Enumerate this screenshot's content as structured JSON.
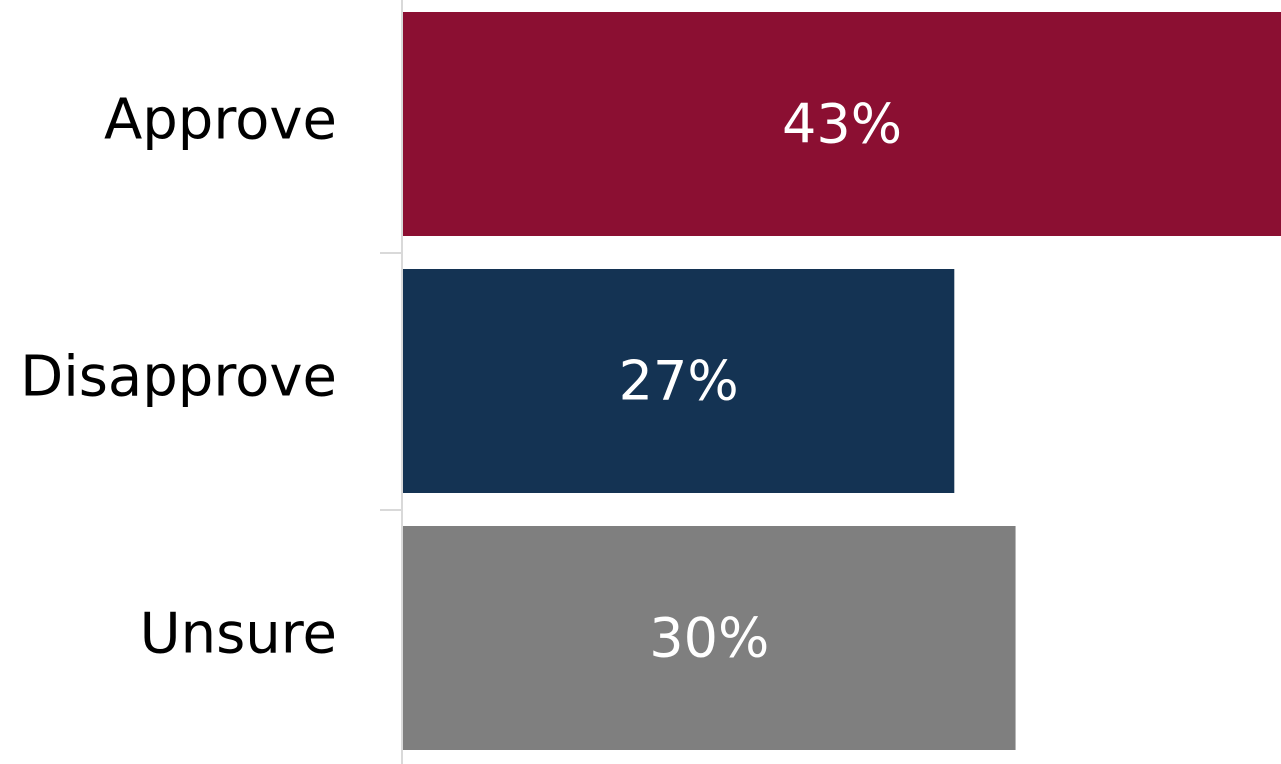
{
  "chart_data": {
    "type": "bar",
    "orientation": "horizontal",
    "categories": [
      "Approve",
      "Disapprove",
      "Unsure"
    ],
    "values": [
      43,
      27,
      30
    ],
    "value_labels": [
      "43%",
      "27%",
      "30%"
    ],
    "colors": [
      "#8b0f32",
      "#143353",
      "#7f7f7f"
    ],
    "xlim": [
      0,
      43
    ],
    "grid": false,
    "legend": "none"
  }
}
